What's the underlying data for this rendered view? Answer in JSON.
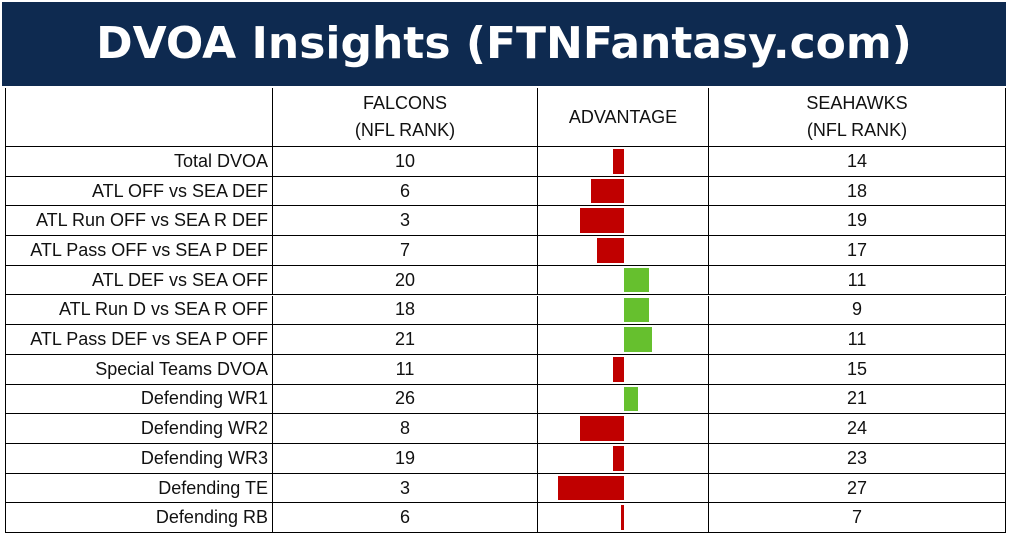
{
  "title": "DVOA Insights (FTNFantasy.com)",
  "header": {
    "falcons": [
      "FALCONS",
      "(NFL RANK)"
    ],
    "advantage": "ADVANTAGE",
    "seahawks": [
      "SEAHAWKS",
      "(NFL RANK)"
    ]
  },
  "colors": {
    "negative": "#c00000",
    "positive": "#66c02e"
  },
  "rows": [
    {
      "label": "Total DVOA",
      "falcons": 10,
      "seahawks": 14,
      "advantage": -4
    },
    {
      "label": "ATL OFF vs SEA DEF",
      "falcons": 6,
      "seahawks": 18,
      "advantage": -12
    },
    {
      "label": "ATL Run OFF vs SEA R DEF",
      "falcons": 3,
      "seahawks": 19,
      "advantage": -16
    },
    {
      "label": "ATL Pass OFF vs SEA P DEF",
      "falcons": 7,
      "seahawks": 17,
      "advantage": -10
    },
    {
      "label": "ATL DEF vs SEA OFF",
      "falcons": 20,
      "seahawks": 11,
      "advantage": 9
    },
    {
      "label": "ATL Run D vs SEA R OFF",
      "falcons": 18,
      "seahawks": 9,
      "advantage": 9
    },
    {
      "label": "ATL Pass DEF vs SEA P OFF",
      "falcons": 21,
      "seahawks": 11,
      "advantage": 10
    },
    {
      "label": "Special Teams DVOA",
      "falcons": 11,
      "seahawks": 15,
      "advantage": -4
    },
    {
      "label": "Defending WR1",
      "falcons": 26,
      "seahawks": 21,
      "advantage": 5
    },
    {
      "label": "Defending WR2",
      "falcons": 8,
      "seahawks": 24,
      "advantage": -16
    },
    {
      "label": "Defending WR3",
      "falcons": 19,
      "seahawks": 23,
      "advantage": -4
    },
    {
      "label": "Defending TE",
      "falcons": 3,
      "seahawks": 27,
      "advantage": -24
    },
    {
      "label": "Defending RB",
      "falcons": 6,
      "seahawks": 7,
      "advantage": -1
    }
  ]
}
